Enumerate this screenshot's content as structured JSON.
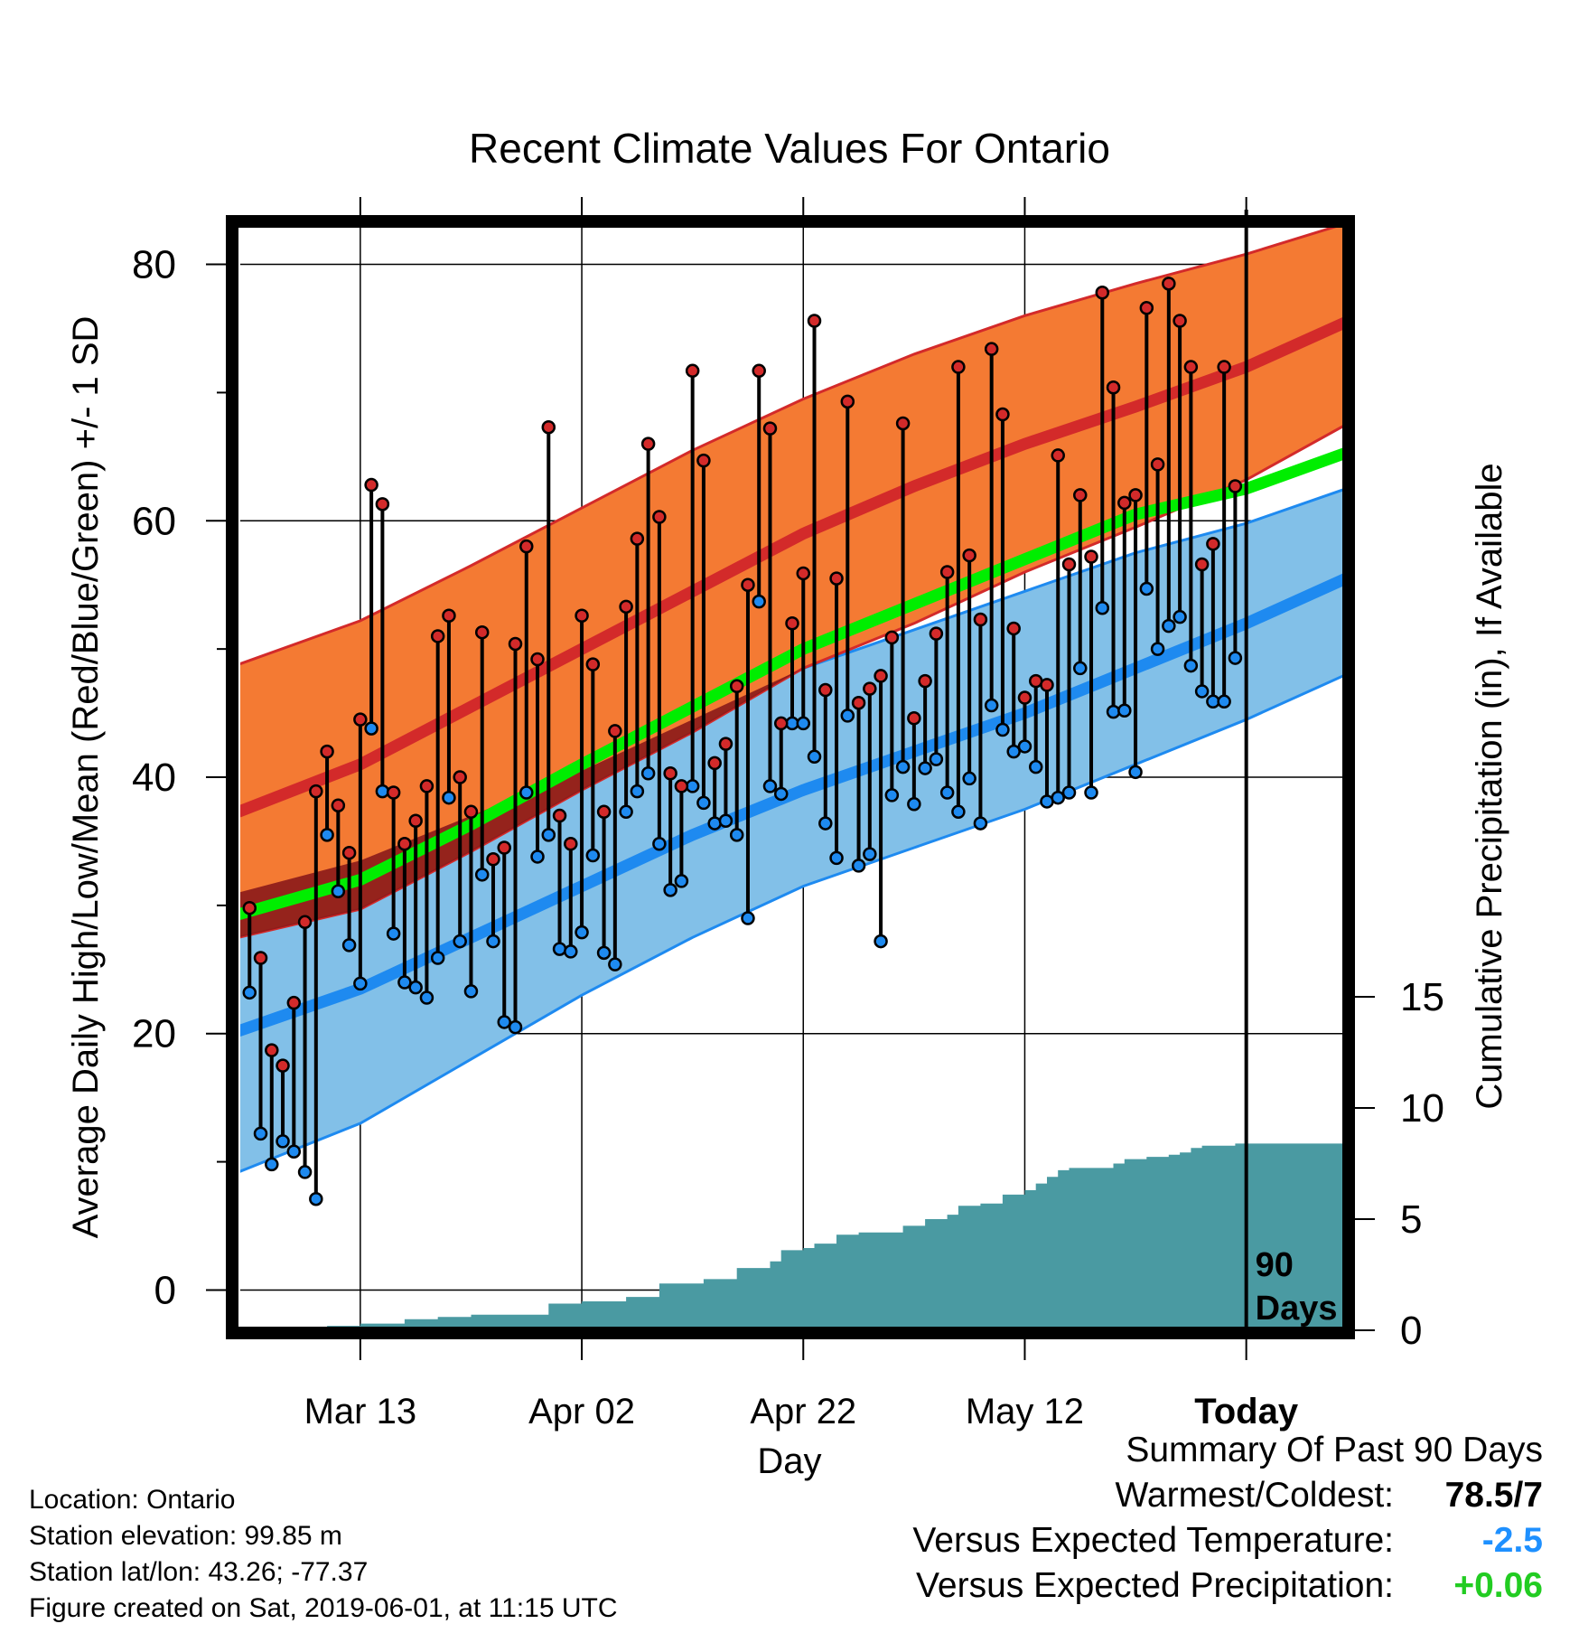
{
  "chart_data": {
    "type": "line",
    "title": "Recent Climate Values For Ontario",
    "xlabel": "Day",
    "ylabel": "Average Daily High/Low/Mean (Red/Blue/Green) +/- 1 SD",
    "y2label": "Cumulative Precipitation (in), If Available",
    "ylim": [
      -3,
      83
    ],
    "y2lim": [
      0,
      30
    ],
    "yticks": [
      0,
      20,
      40,
      60,
      80
    ],
    "y2ticks": [
      0,
      5,
      10,
      15
    ],
    "x_range_days": [
      -91,
      9
    ],
    "xticks": [
      {
        "day": -80,
        "label": "Mar 13"
      },
      {
        "day": -60,
        "label": "Apr 02"
      },
      {
        "day": -40,
        "label": "Apr 22"
      },
      {
        "day": -20,
        "label": "May 12"
      },
      {
        "day": 0,
        "label": "Today"
      }
    ],
    "today_marker_label": [
      "90",
      "Days"
    ],
    "normal_high": {
      "x": [
        -91,
        -80,
        -70,
        -60,
        -50,
        -40,
        -30,
        -20,
        -10,
        0,
        9
      ],
      "mean": [
        37.3,
        41,
        45.5,
        50,
        54.5,
        59,
        62.7,
        66,
        68.9,
        72,
        75.5
      ],
      "upper": [
        48.8,
        52.2,
        56.5,
        61,
        65.5,
        69.5,
        73,
        76,
        78.5,
        80.8,
        83.2
      ],
      "lower": [
        27.5,
        29.7,
        34.2,
        39,
        43.5,
        48.5,
        52,
        56,
        59.5,
        63.2,
        67.5
      ]
    },
    "normal_low": {
      "x": [
        -91,
        -80,
        -70,
        -60,
        -50,
        -40,
        -30,
        -20,
        -10,
        0,
        9
      ],
      "mean": [
        20.2,
        23.5,
        27.5,
        31.5,
        35.5,
        39,
        42,
        45,
        48.5,
        52,
        55.5
      ],
      "upper": [
        31,
        33.5,
        37,
        40.5,
        44.5,
        48.5,
        51.5,
        54.5,
        57.5,
        59.8,
        62.5
      ],
      "lower": [
        9.2,
        13,
        18,
        23,
        27.5,
        31.5,
        34.5,
        37.5,
        41,
        44.5,
        48
      ]
    },
    "normal_mean": {
      "x": [
        -91,
        -80,
        -70,
        -60,
        -50,
        -40,
        -30,
        -20,
        -10,
        0,
        9
      ],
      "values": [
        29.3,
        32,
        36.3,
        41,
        45.5,
        50,
        53.5,
        57,
        60.5,
        62.5,
        65.3
      ]
    },
    "series": [
      {
        "name": "High",
        "x": [
          -90,
          -89,
          -88,
          -87,
          -86,
          -85,
          -84,
          -83,
          -82,
          -81,
          -80,
          -79,
          -78,
          -77,
          -76,
          -75,
          -74,
          -73,
          -72,
          -71,
          -70,
          -69,
          -68,
          -67,
          -66,
          -65,
          -64,
          -63,
          -62,
          -61,
          -60,
          -59,
          -58,
          -57,
          -56,
          -55,
          -54,
          -53,
          -52,
          -51,
          -50,
          -49,
          -48,
          -47,
          -46,
          -45,
          -44,
          -43,
          -42,
          -41,
          -40,
          -39,
          -38,
          -37,
          -36,
          -35,
          -34,
          -33,
          -32,
          -31,
          -30,
          -29,
          -28,
          -27,
          -26,
          -25,
          -24,
          -23,
          -22,
          -21,
          -20,
          -19,
          -18,
          -17,
          -16,
          -15,
          -14,
          -13,
          -12,
          -11,
          -10,
          -9,
          -8,
          -7,
          -6,
          -5,
          -4,
          -3,
          -2,
          -1
        ],
        "values": [
          29.8,
          25.9,
          18.7,
          17.5,
          22.4,
          28.7,
          38.9,
          42,
          37.8,
          34.1,
          44.5,
          62.8,
          61.3,
          38.8,
          34.8,
          36.6,
          39.3,
          51,
          52.6,
          40,
          37.3,
          51.3,
          33.6,
          34.5,
          50.4,
          58,
          49.2,
          67.3,
          37,
          34.8,
          52.6,
          48.8,
          37.3,
          43.6,
          53.3,
          58.6,
          66,
          60.3,
          40.3,
          39.3,
          71.7,
          64.7,
          41.1,
          42.6,
          47.1,
          55,
          71.7,
          67.2,
          44.2,
          52,
          55.9,
          75.6,
          46.8,
          55.5,
          69.3,
          45.8,
          46.9,
          47.9,
          50.9,
          67.6,
          44.6,
          47.5,
          51.2,
          56,
          72,
          57.3,
          52.3,
          73.4,
          68.3,
          51.6,
          46.2,
          47.5,
          47.2,
          65.1,
          56.6,
          62,
          57.2,
          77.8,
          70.4,
          61.4,
          62,
          76.6,
          64.4,
          78.5,
          75.6,
          72,
          56.6,
          58.2,
          72,
          62.7
        ]
      },
      {
        "name": "Low",
        "x": [
          -90,
          -89,
          -88,
          -87,
          -86,
          -85,
          -84,
          -83,
          -82,
          -81,
          -80,
          -79,
          -78,
          -77,
          -76,
          -75,
          -74,
          -73,
          -72,
          -71,
          -70,
          -69,
          -68,
          -67,
          -66,
          -65,
          -64,
          -63,
          -62,
          -61,
          -60,
          -59,
          -58,
          -57,
          -56,
          -55,
          -54,
          -53,
          -52,
          -51,
          -50,
          -49,
          -48,
          -47,
          -46,
          -45,
          -44,
          -43,
          -42,
          -41,
          -40,
          -39,
          -38,
          -37,
          -36,
          -35,
          -34,
          -33,
          -32,
          -31,
          -30,
          -29,
          -28,
          -27,
          -26,
          -25,
          -24,
          -23,
          -22,
          -21,
          -20,
          -19,
          -18,
          -17,
          -16,
          -15,
          -14,
          -13,
          -12,
          -11,
          -10,
          -9,
          -8,
          -7,
          -6,
          -5,
          -4,
          -3,
          -2,
          -1
        ],
        "values": [
          23.2,
          12.2,
          9.8,
          11.6,
          10.8,
          9.2,
          7.1,
          35.5,
          31.1,
          26.9,
          23.9,
          43.8,
          38.9,
          27.8,
          24,
          23.6,
          22.8,
          25.9,
          38.4,
          27.2,
          23.3,
          32.4,
          27.2,
          20.9,
          20.5,
          38.8,
          33.8,
          35.5,
          26.6,
          26.4,
          27.9,
          33.9,
          26.3,
          25.4,
          37.3,
          38.9,
          40.3,
          34.8,
          31.2,
          31.9,
          39.3,
          38,
          36.4,
          36.6,
          35.5,
          29,
          53.7,
          39.3,
          38.7,
          44.2,
          44.2,
          41.6,
          36.4,
          33.7,
          44.8,
          33.1,
          34,
          27.2,
          38.6,
          40.8,
          37.9,
          40.7,
          41.4,
          38.8,
          37.3,
          39.9,
          36.4,
          45.6,
          43.7,
          42,
          42.4,
          40.8,
          38.1,
          38.4,
          38.8,
          48.5,
          38.8,
          53.2,
          45.1,
          45.2,
          40.4,
          54.7,
          50,
          51.8,
          52.5,
          48.7,
          46.7,
          45.9,
          45.9,
          49.3
        ]
      }
    ],
    "precipitation": {
      "x": [
        -90,
        -83,
        -80,
        -76,
        -73,
        -70,
        -65,
        -63,
        -60,
        -56,
        -53,
        -49,
        -46,
        -43,
        -42,
        -40,
        -39,
        -37,
        -35,
        -33,
        -31,
        -29,
        -27,
        -26,
        -24,
        -22,
        -20,
        -19,
        -18,
        -17,
        -16,
        -14,
        -12,
        -11,
        -9,
        -8,
        -7,
        -6,
        -5,
        -4,
        -3,
        -2,
        -1,
        0,
        9
      ],
      "cumulative": [
        0,
        0.2,
        0.3,
        0.5,
        0.6,
        0.7,
        0.7,
        1.2,
        1.3,
        1.5,
        2.1,
        2.3,
        2.8,
        3.1,
        3.6,
        3.7,
        3.9,
        4.3,
        4.4,
        4.4,
        4.7,
        5,
        5.2,
        5.6,
        5.7,
        6.1,
        6.3,
        6.6,
        6.9,
        7.2,
        7.3,
        7.3,
        7.5,
        7.7,
        7.8,
        7.8,
        7.9,
        8,
        8.2,
        8.3,
        8.3,
        8.3,
        8.4,
        8.4,
        8.4
      ]
    }
  },
  "footer": {
    "location": "Location: Ontario",
    "elevation": "Station elevation: 99.85 m",
    "latlon": "Station lat/lon: 43.26; -77.37",
    "created": "Figure created on Sat, 2019-06-01, at 11:15 UTC"
  },
  "summary": {
    "title": "Summary Of Past 90 Days",
    "warmest_label": "Warmest/Coldest:",
    "warmest_value": "78.5/7",
    "temp_label": "Versus Expected Temperature:",
    "temp_value": "-2.5",
    "temp_color": "#1e90ff",
    "precip_label": "Versus Expected Precipitation:",
    "precip_value": "+0.06",
    "precip_color": "#22cc22"
  },
  "colors": {
    "high_band": "#f47a33",
    "high_line": "#d32a2a",
    "low_band": "#82c0e8",
    "low_line": "#1e8af0",
    "mean_line": "#00ee00",
    "precip": "#4a9aa2",
    "high_dot": "#d32a2a",
    "low_dot": "#1e8af0",
    "overlap": "#8b1a1a"
  }
}
